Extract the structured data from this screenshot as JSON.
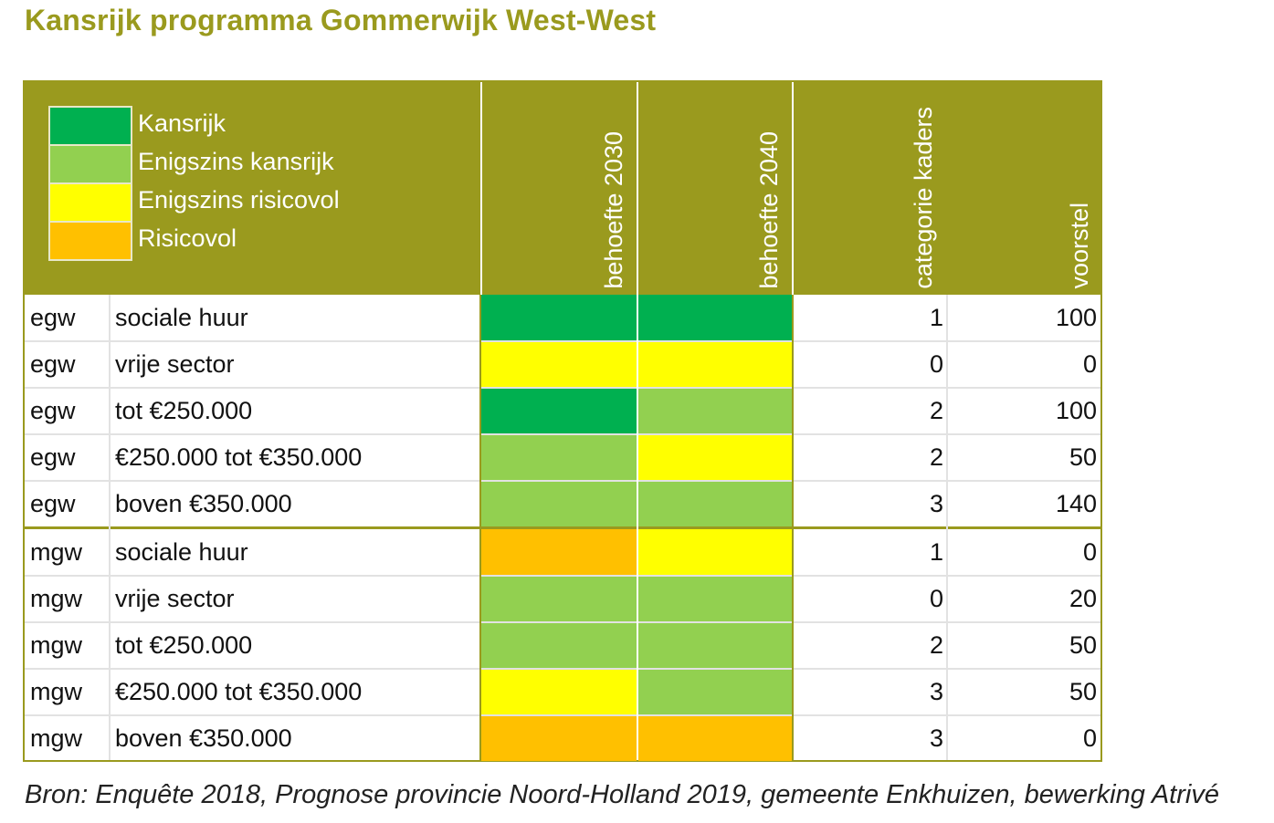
{
  "title": "Kansrijk programma Gommerwijk West-West",
  "colors": {
    "brand": "#9a9a1e",
    "Kansrijk": "#00b050",
    "Enigszins kansrijk": "#92d050",
    "Enigszins risicovol": "#ffff00",
    "Risicovol": "#ffc000"
  },
  "legend": [
    {
      "label": "Kansrijk",
      "color": "#00b050"
    },
    {
      "label": "Enigszins kansrijk",
      "color": "#92d050"
    },
    {
      "label": "Enigszins risicovol",
      "color": "#ffff00"
    },
    {
      "label": "Risicovol",
      "color": "#ffc000"
    }
  ],
  "columns": {
    "behoefte_2030": "behoefte 2030",
    "behoefte_2040": "behoefte 2040",
    "categorie_kaders": "categorie kaders",
    "voorstel": "voorstel"
  },
  "chart_data": {
    "type": "table",
    "title": "Kansrijk programma Gommerwijk West-West",
    "columns": [
      "",
      "",
      "behoefte 2030",
      "behoefte 2040",
      "categorie kaders",
      "voorstel"
    ],
    "rows": [
      {
        "type": "egw",
        "segment": "sociale huur",
        "behoefte_2030": "Kansrijk",
        "behoefte_2040": "Kansrijk",
        "categorie_kaders": "1",
        "voorstel": "100"
      },
      {
        "type": "egw",
        "segment": "vrije sector",
        "behoefte_2030": "Enigszins risicovol",
        "behoefte_2040": "Enigszins risicovol",
        "categorie_kaders": "0",
        "voorstel": "0"
      },
      {
        "type": "egw",
        "segment": "tot €250.000",
        "behoefte_2030": "Kansrijk",
        "behoefte_2040": "Enigszins kansrijk",
        "categorie_kaders": "2",
        "voorstel": "100"
      },
      {
        "type": "egw",
        "segment": "€250.000 tot €350.000",
        "behoefte_2030": "Enigszins kansrijk",
        "behoefte_2040": "Enigszins risicovol",
        "categorie_kaders": "2",
        "voorstel": "50"
      },
      {
        "type": "egw",
        "segment": "boven €350.000",
        "behoefte_2030": "Enigszins kansrijk",
        "behoefte_2040": "Enigszins kansrijk",
        "categorie_kaders": "3",
        "voorstel": "140"
      },
      {
        "type": "mgw",
        "segment": "sociale huur",
        "behoefte_2030": "Risicovol",
        "behoefte_2040": "Enigszins risicovol",
        "categorie_kaders": "1",
        "voorstel": "0"
      },
      {
        "type": "mgw",
        "segment": "vrije sector",
        "behoefte_2030": "Enigszins kansrijk",
        "behoefte_2040": "Enigszins kansrijk",
        "categorie_kaders": "0",
        "voorstel": "20"
      },
      {
        "type": "mgw",
        "segment": "tot €250.000",
        "behoefte_2030": "Enigszins kansrijk",
        "behoefte_2040": "Enigszins kansrijk",
        "categorie_kaders": "2",
        "voorstel": "50"
      },
      {
        "type": "mgw",
        "segment": "€250.000 tot €350.000",
        "behoefte_2030": "Enigszins risicovol",
        "behoefte_2040": "Enigszins kansrijk",
        "categorie_kaders": "3",
        "voorstel": "50"
      },
      {
        "type": "mgw",
        "segment": "boven €350.000",
        "behoefte_2030": "Risicovol",
        "behoefte_2040": "Risicovol",
        "categorie_kaders": "3",
        "voorstel": "0"
      }
    ]
  },
  "source": "Bron: Enquête 2018, Prognose provincie Noord-Holland 2019, gemeente Enkhuizen, bewerking Atrivé"
}
